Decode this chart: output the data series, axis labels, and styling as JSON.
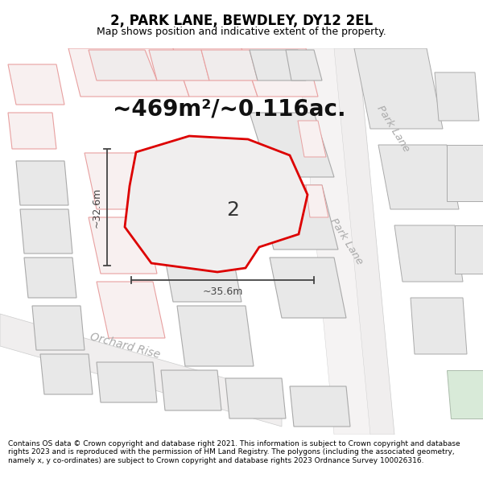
{
  "title": "2, PARK LANE, BEWDLEY, DY12 2EL",
  "subtitle": "Map shows position and indicative extent of the property.",
  "area_text": "~469m²/~0.116ac.",
  "label_number": "2",
  "dim_width": "~35.6m",
  "dim_height": "~32.6m",
  "road_label_park": "Park Lane",
  "road_label_park2": "Park Lane",
  "road_label_orchard": "Orchard Rise",
  "footer": "Contains OS data © Crown copyright and database right 2021. This information is subject to Crown copyright and database rights 2023 and is reproduced with the permission of HM Land Registry. The polygons (including the associated geometry, namely x, y co-ordinates) are subject to Crown copyright and database rights 2023 Ordnance Survey 100026316.",
  "bg_color": "#ffffff",
  "plot_fill": "#f0eeee",
  "plot_edge": "#dd0000",
  "parcel_fill_gray": "#e8e8e8",
  "parcel_edge_gray": "#aaaaaa",
  "parcel_fill_pink": "#f8f0f0",
  "parcel_edge_pink": "#e8a0a0",
  "road_fill": "#f0eeee",
  "road_edge": "#bbbbbb",
  "dim_color": "#444444",
  "road_text_color": "#aaaaaa",
  "title_fontsize": 12,
  "subtitle_fontsize": 9,
  "area_fontsize": 20,
  "footer_fontsize": 6.5
}
